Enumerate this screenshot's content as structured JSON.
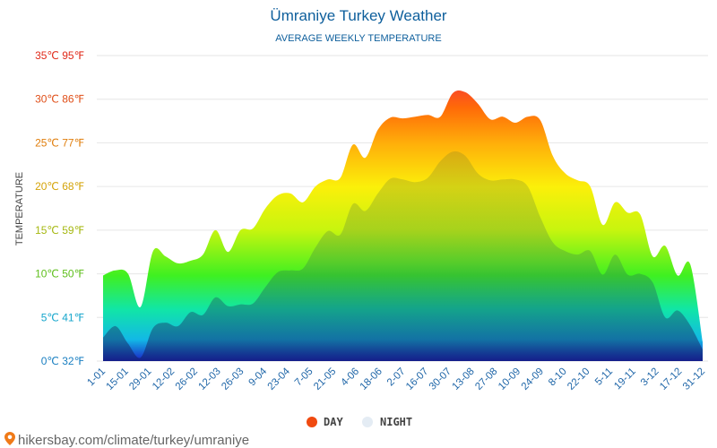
{
  "header": {
    "title": "Ümraniye Turkey Weather",
    "subtitle": "AVERAGE WEEKLY TEMPERATURE"
  },
  "footer": {
    "credit": "hikersbay.com/climate/turkey/umraniye",
    "pin_icon": "map-pin-icon"
  },
  "chart_data": {
    "type": "area",
    "ylabel": "TEMPERATURE",
    "ylim": [
      0,
      35
    ],
    "grid": true,
    "legend_position": "bottom-center",
    "y_ticks": [
      {
        "value": 0,
        "label": "0℃ 32℉",
        "color": "#1a7fc1"
      },
      {
        "value": 5,
        "label": "5℃ 41℉",
        "color": "#16a6cc"
      },
      {
        "value": 10,
        "label": "10℃ 50℉",
        "color": "#5fbf1d"
      },
      {
        "value": 15,
        "label": "15℃ 59℉",
        "color": "#a6b812"
      },
      {
        "value": 20,
        "label": "20℃ 68℉",
        "color": "#d4a40a"
      },
      {
        "value": 25,
        "label": "25℃ 77℉",
        "color": "#e07e0c"
      },
      {
        "value": 30,
        "label": "30℃ 86℉",
        "color": "#e0501a"
      },
      {
        "value": 35,
        "label": "35℃ 95℉",
        "color": "#e02a1a"
      }
    ],
    "x_ticks": [
      "1-01",
      "15-01",
      "29-01",
      "12-02",
      "26-02",
      "12-03",
      "26-03",
      "9-04",
      "23-04",
      "7-05",
      "21-05",
      "4-06",
      "18-06",
      "2-07",
      "16-07",
      "30-07",
      "13-08",
      "27-08",
      "10-09",
      "24-09",
      "8-10",
      "22-10",
      "5-11",
      "19-11",
      "3-12",
      "17-12",
      "31-12"
    ],
    "series": [
      {
        "name": "DAY",
        "legend_color": "#f04a10",
        "values": [
          9.8,
          10.4,
          10.0,
          6.2,
          12.6,
          12.0,
          11.2,
          11.5,
          12.2,
          15.0,
          12.5,
          15.0,
          15.2,
          17.5,
          19.0,
          19.2,
          18.2,
          20.0,
          20.8,
          21.0,
          24.8,
          23.3,
          26.5,
          27.9,
          27.8,
          28.0,
          28.2,
          28.0,
          30.7,
          30.8,
          29.5,
          27.7,
          28.0,
          27.3,
          28.0,
          27.6,
          23.5,
          21.5,
          20.7,
          20.0,
          15.6,
          18.2,
          17.0,
          16.8,
          12.0,
          13.2,
          9.8,
          11.1,
          2.2
        ]
      },
      {
        "name": "NIGHT",
        "legend_color": "#e4ecf4",
        "values": [
          2.7,
          4.0,
          2.0,
          0.4,
          3.8,
          4.4,
          4.0,
          5.6,
          5.3,
          7.3,
          6.3,
          6.5,
          6.6,
          8.5,
          10.2,
          10.4,
          10.6,
          13.0,
          14.9,
          14.5,
          18.0,
          17.2,
          19.2,
          20.9,
          20.8,
          20.5,
          21.0,
          22.9,
          24.0,
          23.5,
          21.5,
          20.7,
          20.8,
          20.8,
          20.0,
          16.5,
          13.6,
          12.6,
          12.2,
          12.6,
          9.9,
          12.2,
          9.9,
          10.0,
          9.0,
          5.0,
          5.8,
          4.1,
          1.3
        ]
      }
    ]
  }
}
